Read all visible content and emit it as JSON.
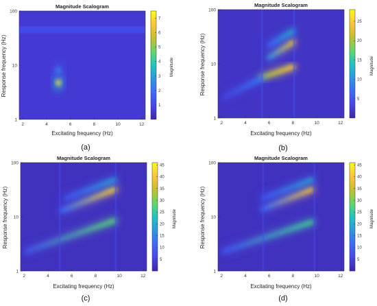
{
  "colors": {
    "colormap": [
      "#3e26a8",
      "#4746eb",
      "#3c6bfd",
      "#2f96e1",
      "#1ac7c2",
      "#63d86b",
      "#c7c029",
      "#fec537",
      "#f9fb15"
    ],
    "background": "#3a2e9a"
  },
  "chart_data": [
    {
      "type": "heatmap",
      "panel_label": "(a)",
      "title": "Magnitude Scalogram",
      "xlabel": "Excitating frequency (Hz)",
      "ylabel": "Response frequency (Hz)",
      "colorbar_label": "Magnitude",
      "x_ticks": [
        "2",
        "4",
        "6",
        "8",
        "10",
        "12"
      ],
      "y_ticks": [
        "1",
        "10",
        "100"
      ],
      "colorbar_ticks": [
        "1",
        "2",
        "3",
        "4",
        "5",
        "6",
        "7"
      ],
      "xlim": [
        1.7,
        12.3
      ],
      "ylim": [
        1,
        100
      ],
      "y_scale": "log",
      "cmax": 7.5,
      "background_magnitude": 0.6,
      "features": [
        {
          "kind": "band",
          "y": 45,
          "x_from": 1.7,
          "x_to": 12.3,
          "magnitude": 1.1
        },
        {
          "kind": "spot",
          "x": 5.0,
          "y": 4.8,
          "magnitude": 7.2
        },
        {
          "kind": "spot",
          "x": 5.0,
          "y": 8.0,
          "magnitude": 2.5
        }
      ]
    },
    {
      "type": "heatmap",
      "panel_label": "(b)",
      "title": "Magnitude Scalogram",
      "xlabel": "Excitating frequency (Hz)",
      "ylabel": "Response frequency (Hz)",
      "colorbar_label": "Magnitude",
      "x_ticks": [
        "2",
        "4",
        "6",
        "8",
        "10",
        "12"
      ],
      "y_ticks": [
        "1",
        "10",
        "100"
      ],
      "colorbar_ticks": [
        "5",
        "10",
        "15",
        "20",
        "25"
      ],
      "xlim": [
        1.7,
        12.3
      ],
      "ylim": [
        1,
        100
      ],
      "y_scale": "log",
      "cmax": 28,
      "background_magnitude": 1.5,
      "features": [
        {
          "kind": "ridge",
          "x_from": 5.4,
          "x_to": 8.0,
          "y_from": 5.6,
          "y_to": 8.8,
          "mag_from": 20,
          "mag_to": 25
        },
        {
          "kind": "ridge",
          "x_from": 6.0,
          "x_to": 8.0,
          "y_from": 13,
          "y_to": 25,
          "mag_from": 10,
          "mag_to": 24
        },
        {
          "kind": "ridge",
          "x_from": 6.0,
          "x_to": 8.0,
          "y_from": 22,
          "y_to": 40,
          "mag_from": 6,
          "mag_to": 12
        },
        {
          "kind": "ridge",
          "x_from": 2.2,
          "x_to": 5.4,
          "y_from": 2.4,
          "y_to": 5.4,
          "mag_from": 3,
          "mag_to": 8
        },
        {
          "kind": "ridge",
          "x_from": 8.0,
          "x_to": 11.0,
          "y_from": 5.8,
          "y_to": 5.8,
          "mag_from": 6,
          "mag_to": 4
        },
        {
          "kind": "vline",
          "x": 5.4,
          "magnitude": 5
        },
        {
          "kind": "vline",
          "x": 8.1,
          "magnitude": 5
        }
      ]
    },
    {
      "type": "heatmap",
      "panel_label": "(c)",
      "title": "Magnitude Scalogram",
      "xlabel": "Excitating frequency (Hz)",
      "ylabel": "Response frequency (Hz)",
      "colorbar_label": "Magnitude",
      "x_ticks": [
        "2",
        "4",
        "6",
        "8",
        "10",
        "12"
      ],
      "y_ticks": [
        "1",
        "10",
        "100"
      ],
      "colorbar_ticks": [
        "5",
        "10",
        "15",
        "20",
        "25",
        "30",
        "35",
        "40",
        "45"
      ],
      "xlim": [
        1.7,
        12.3
      ],
      "ylim": [
        1,
        100
      ],
      "y_scale": "log",
      "cmax": 46,
      "background_magnitude": 2,
      "features": [
        {
          "kind": "ridge",
          "x_from": 2.2,
          "x_to": 9.6,
          "y_from": 2.3,
          "y_to": 8.5,
          "mag_from": 8,
          "mag_to": 28
        },
        {
          "kind": "ridge",
          "x_from": 5.2,
          "x_to": 9.6,
          "y_from": 13,
          "y_to": 32,
          "mag_from": 12,
          "mag_to": 42
        },
        {
          "kind": "ridge",
          "x_from": 5.5,
          "x_to": 9.6,
          "y_from": 22,
          "y_to": 48,
          "mag_from": 8,
          "mag_to": 18
        },
        {
          "kind": "ridge",
          "x_from": 9.6,
          "x_to": 11.5,
          "y_from": 5.8,
          "y_to": 5.8,
          "mag_from": 10,
          "mag_to": 6
        },
        {
          "kind": "vline",
          "x": 5.0,
          "magnitude": 7
        },
        {
          "kind": "vline",
          "x": 9.7,
          "magnitude": 7
        }
      ]
    },
    {
      "type": "heatmap",
      "panel_label": "(d)",
      "title": "Magnitude Scalogram",
      "xlabel": "Excitating frequency (Hz)",
      "ylabel": "Response frequency (Hz)",
      "colorbar_label": "Magnitude",
      "x_ticks": [
        "2",
        "4",
        "6",
        "8",
        "10",
        "12"
      ],
      "y_ticks": [
        "1",
        "10",
        "100"
      ],
      "colorbar_ticks": [
        "5",
        "10",
        "15",
        "20",
        "25",
        "30",
        "35",
        "40",
        "45"
      ],
      "xlim": [
        1.7,
        12.3
      ],
      "ylim": [
        1,
        100
      ],
      "y_scale": "log",
      "cmax": 46,
      "background_magnitude": 2,
      "features": [
        {
          "kind": "ridge",
          "x_from": 2.2,
          "x_to": 9.6,
          "y_from": 2.3,
          "y_to": 8.0,
          "mag_from": 8,
          "mag_to": 26
        },
        {
          "kind": "ridge",
          "x_from": 5.5,
          "x_to": 9.6,
          "y_from": 14,
          "y_to": 32,
          "mag_from": 12,
          "mag_to": 40
        },
        {
          "kind": "ridge",
          "x_from": 5.5,
          "x_to": 9.6,
          "y_from": 22,
          "y_to": 48,
          "mag_from": 8,
          "mag_to": 18
        },
        {
          "kind": "ridge",
          "x_from": 9.6,
          "x_to": 11.5,
          "y_from": 5.8,
          "y_to": 5.8,
          "mag_from": 10,
          "mag_to": 6
        },
        {
          "kind": "vline",
          "x": 5.5,
          "magnitude": 7
        },
        {
          "kind": "vline",
          "x": 9.8,
          "magnitude": 7
        }
      ]
    }
  ]
}
